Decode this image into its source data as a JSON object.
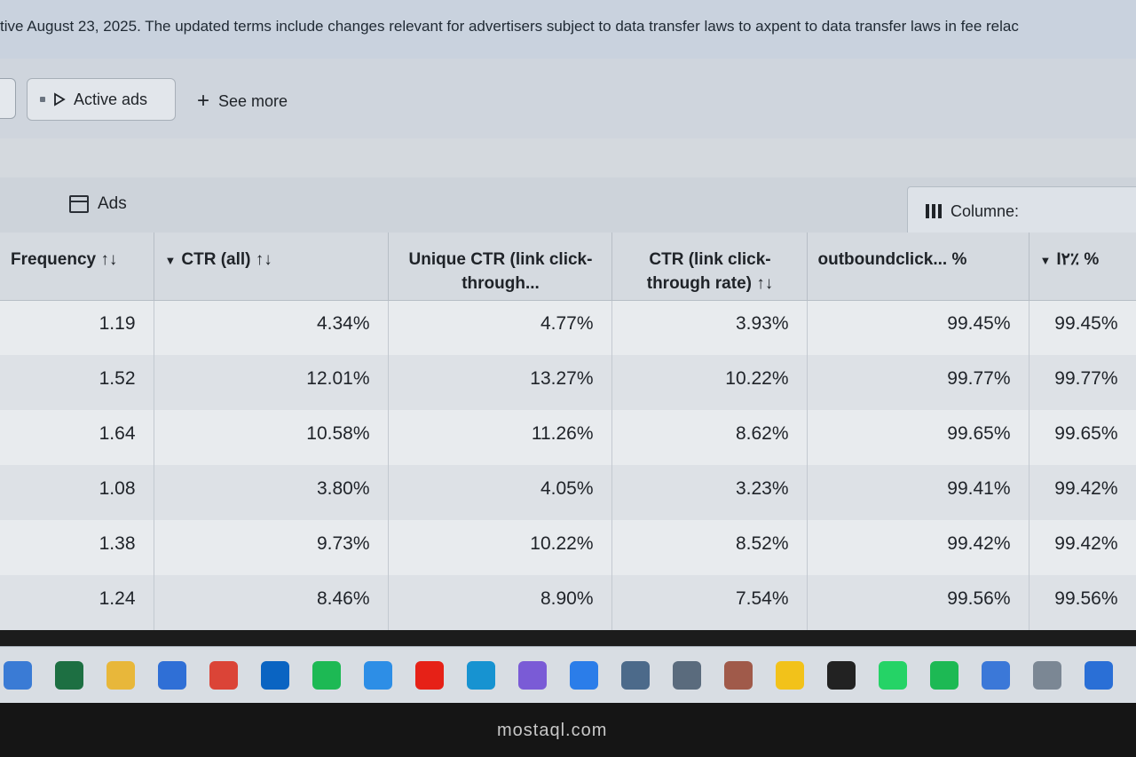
{
  "banner": {
    "text": "tive August 23, 2025. The updated terms include changes relevant for advertisers subject to data transfer laws to axpent to data transfer laws in fee relac"
  },
  "toolbar": {
    "active_ads_label": "Active ads",
    "see_more_label": "See more"
  },
  "panel": {
    "title": "Ads",
    "columns_label": "Columne:"
  },
  "table": {
    "headers": {
      "frequency": "Frequency ↑↓",
      "ctr_all": "CTR (all) ↑↓",
      "unique_ctr": "Unique CTR (link click-through...",
      "ctr_link": "CTR (link click-through rate) ↑↓",
      "outbound": "outboundclick... %",
      "last": "I٢٪ %"
    },
    "rows": [
      {
        "frequency": "1.19",
        "ctr_all": "4.34%",
        "unique_ctr": "4.77%",
        "ctr_link": "3.93%",
        "outbound": "99.45%",
        "last": "99.45%"
      },
      {
        "frequency": "1.52",
        "ctr_all": "12.01%",
        "unique_ctr": "13.27%",
        "ctr_link": "10.22%",
        "outbound": "99.77%",
        "last": "99.77%"
      },
      {
        "frequency": "1.64",
        "ctr_all": "10.58%",
        "unique_ctr": "11.26%",
        "ctr_link": "8.62%",
        "outbound": "99.65%",
        "last": "99.65%"
      },
      {
        "frequency": "1.08",
        "ctr_all": "3.80%",
        "unique_ctr": "4.05%",
        "ctr_link": "3.23%",
        "outbound": "99.41%",
        "last": "99.42%"
      },
      {
        "frequency": "1.38",
        "ctr_all": "9.73%",
        "unique_ctr": "10.22%",
        "ctr_link": "8.52%",
        "outbound": "99.42%",
        "last": "99.42%"
      },
      {
        "frequency": "1.24",
        "ctr_all": "8.46%",
        "unique_ctr": "8.90%",
        "ctr_link": "7.54%",
        "outbound": "99.56%",
        "last": "99.56%"
      }
    ]
  },
  "taskbar": {
    "icons": [
      {
        "name": "file-explorer-icon",
        "color": "#3a7bd5"
      },
      {
        "name": "excel-icon",
        "color": "#1d6f42"
      },
      {
        "name": "folder-icon",
        "color": "#e8b73a"
      },
      {
        "name": "store-icon",
        "color": "#2f6fd6"
      },
      {
        "name": "chrome-icon",
        "color": "#db4437"
      },
      {
        "name": "outlook-icon",
        "color": "#0a64c2"
      },
      {
        "name": "spotify-icon",
        "color": "#1db954"
      },
      {
        "name": "safari-icon",
        "color": "#2d8ee6"
      },
      {
        "name": "youtube-icon",
        "color": "#e62117"
      },
      {
        "name": "app-circle-icon",
        "color": "#1793d1"
      },
      {
        "name": "photos-icon",
        "color": "#7a5bd6"
      },
      {
        "name": "play-icon",
        "color": "#2b7de9"
      },
      {
        "name": "cursor-app-icon",
        "color": "#4c6a8a"
      },
      {
        "name": "settings-app-icon",
        "color": "#5a6b7d"
      },
      {
        "name": "gift-icon",
        "color": "#a05a4a"
      },
      {
        "name": "notification-icon",
        "color": "#f2c21a"
      },
      {
        "name": "capcut-icon",
        "color": "#222222"
      },
      {
        "name": "whatsapp-icon",
        "color": "#25d366"
      },
      {
        "name": "spotify-alt-icon",
        "color": "#1db954"
      },
      {
        "name": "calendar-icon",
        "color": "#3b78d8"
      },
      {
        "name": "tablet-icon",
        "color": "#7b8794"
      },
      {
        "name": "phone-icon",
        "color": "#2a6fd6"
      }
    ]
  },
  "watermark": "mostaql.com"
}
